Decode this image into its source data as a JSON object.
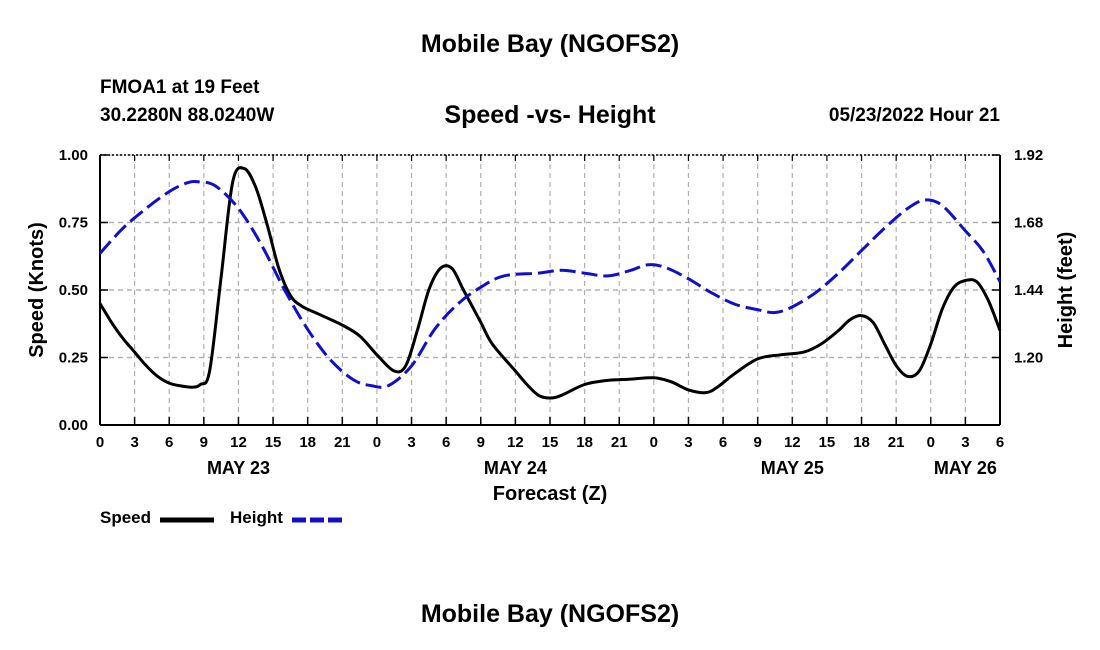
{
  "page": {
    "title_top": "Mobile Bay (NGOFS2)",
    "title_bottom": "Mobile Bay (NGOFS2)",
    "station": "FMOA1 at 19 Feet",
    "coordinates": "30.2280N  88.0240W",
    "subtitle": "Speed -vs- Height",
    "timestamp": "05/23/2022 Hour 21"
  },
  "chart_data": {
    "type": "line",
    "title": "Speed -vs- Height",
    "xlabel": "Forecast (Z)",
    "ylabel": "Speed (Knots)",
    "ylabel_right": "Height (feet)",
    "x_unit": "hours since 2022-05-23 00Z",
    "xlim": [
      0,
      78
    ],
    "ylim": [
      0,
      1.0
    ],
    "ylim_right": [
      0.96,
      1.92
    ],
    "grid": true,
    "x_ticks": [
      0,
      3,
      6,
      9,
      12,
      15,
      18,
      21,
      24,
      27,
      30,
      33,
      36,
      39,
      42,
      45,
      48,
      51,
      54,
      57,
      60,
      63,
      66,
      69,
      72,
      75,
      78
    ],
    "x_tick_labels": [
      "0",
      "3",
      "6",
      "9",
      "12",
      "15",
      "18",
      "21",
      "0",
      "3",
      "6",
      "9",
      "12",
      "15",
      "18",
      "21",
      "0",
      "3",
      "6",
      "9",
      "12",
      "15",
      "18",
      "21",
      "0",
      "3",
      "6"
    ],
    "date_labels": [
      {
        "x": 12,
        "label": "MAY 23"
      },
      {
        "x": 36,
        "label": "MAY 24"
      },
      {
        "x": 60,
        "label": "MAY 25"
      },
      {
        "x": 75,
        "label": "MAY 26"
      }
    ],
    "y_ticks": [
      0,
      0.25,
      0.5,
      0.75,
      1.0
    ],
    "y_tick_labels": [
      "0.00",
      "0.25",
      "0.50",
      "0.75",
      "1.00"
    ],
    "y_ticks_right": [
      1.2,
      1.44,
      1.68,
      1.92
    ],
    "y_tick_labels_right": [
      "1.20",
      "1.44",
      "1.68",
      "1.92"
    ],
    "legend_placement": "bottom-left",
    "series": [
      {
        "name": "Speed",
        "axis": "left",
        "color": "#000000",
        "style": "solid",
        "points": [
          [
            0,
            0.45
          ],
          [
            1,
            0.38
          ],
          [
            2,
            0.32
          ],
          [
            3,
            0.27
          ],
          [
            4,
            0.22
          ],
          [
            5,
            0.18
          ],
          [
            6,
            0.155
          ],
          [
            7,
            0.145
          ],
          [
            8,
            0.14
          ],
          [
            8.7,
            0.15
          ],
          [
            9.5,
            0.2
          ],
          [
            10.5,
            0.55
          ],
          [
            11.5,
            0.9
          ],
          [
            12.5,
            0.95
          ],
          [
            13.5,
            0.88
          ],
          [
            14.5,
            0.74
          ],
          [
            15.5,
            0.58
          ],
          [
            16.5,
            0.48
          ],
          [
            17.5,
            0.44
          ],
          [
            19,
            0.41
          ],
          [
            21,
            0.37
          ],
          [
            22.5,
            0.33
          ],
          [
            24,
            0.26
          ],
          [
            25.5,
            0.2
          ],
          [
            26.5,
            0.22
          ],
          [
            27.5,
            0.35
          ],
          [
            28.5,
            0.5
          ],
          [
            29.5,
            0.58
          ],
          [
            30.5,
            0.58
          ],
          [
            31.5,
            0.5
          ],
          [
            33,
            0.38
          ],
          [
            34,
            0.3
          ],
          [
            36,
            0.2
          ],
          [
            37,
            0.15
          ],
          [
            38,
            0.11
          ],
          [
            39,
            0.1
          ],
          [
            40,
            0.11
          ],
          [
            42,
            0.15
          ],
          [
            44,
            0.165
          ],
          [
            46,
            0.17
          ],
          [
            48,
            0.175
          ],
          [
            49.5,
            0.16
          ],
          [
            51,
            0.13
          ],
          [
            52.5,
            0.12
          ],
          [
            53.5,
            0.14
          ],
          [
            55,
            0.19
          ],
          [
            57,
            0.245
          ],
          [
            59,
            0.26
          ],
          [
            61,
            0.27
          ],
          [
            62.5,
            0.3
          ],
          [
            64,
            0.35
          ],
          [
            65,
            0.39
          ],
          [
            66,
            0.405
          ],
          [
            67,
            0.38
          ],
          [
            68,
            0.3
          ],
          [
            69,
            0.22
          ],
          [
            70,
            0.18
          ],
          [
            71,
            0.2
          ],
          [
            72,
            0.3
          ],
          [
            73,
            0.43
          ],
          [
            74,
            0.51
          ],
          [
            75,
            0.535
          ],
          [
            76,
            0.53
          ],
          [
            77,
            0.46
          ],
          [
            78,
            0.35
          ]
        ]
      },
      {
        "name": "Height",
        "axis": "right",
        "color": "#1010cc",
        "style": "dashed",
        "points": [
          [
            0,
            1.57
          ],
          [
            2,
            1.66
          ],
          [
            4,
            1.73
          ],
          [
            6,
            1.79
          ],
          [
            7.5,
            1.82
          ],
          [
            8.5,
            1.825
          ],
          [
            10,
            1.81
          ],
          [
            12,
            1.73
          ],
          [
            14,
            1.6
          ],
          [
            16,
            1.44
          ],
          [
            18,
            1.3
          ],
          [
            20,
            1.19
          ],
          [
            22,
            1.12
          ],
          [
            23.5,
            1.1
          ],
          [
            25,
            1.1
          ],
          [
            27,
            1.17
          ],
          [
            29,
            1.3
          ],
          [
            31,
            1.39
          ],
          [
            33,
            1.45
          ],
          [
            35,
            1.49
          ],
          [
            38,
            1.5
          ],
          [
            40,
            1.51
          ],
          [
            42,
            1.5
          ],
          [
            44,
            1.49
          ],
          [
            46,
            1.51
          ],
          [
            47.5,
            1.53
          ],
          [
            49,
            1.52
          ],
          [
            51,
            1.48
          ],
          [
            53,
            1.43
          ],
          [
            55,
            1.39
          ],
          [
            57,
            1.37
          ],
          [
            58.5,
            1.36
          ],
          [
            60,
            1.38
          ],
          [
            62,
            1.43
          ],
          [
            64,
            1.5
          ],
          [
            66,
            1.58
          ],
          [
            68,
            1.66
          ],
          [
            70,
            1.73
          ],
          [
            71.5,
            1.76
          ],
          [
            73,
            1.74
          ],
          [
            75,
            1.65
          ],
          [
            76.5,
            1.58
          ],
          [
            78,
            1.47
          ]
        ]
      }
    ]
  }
}
